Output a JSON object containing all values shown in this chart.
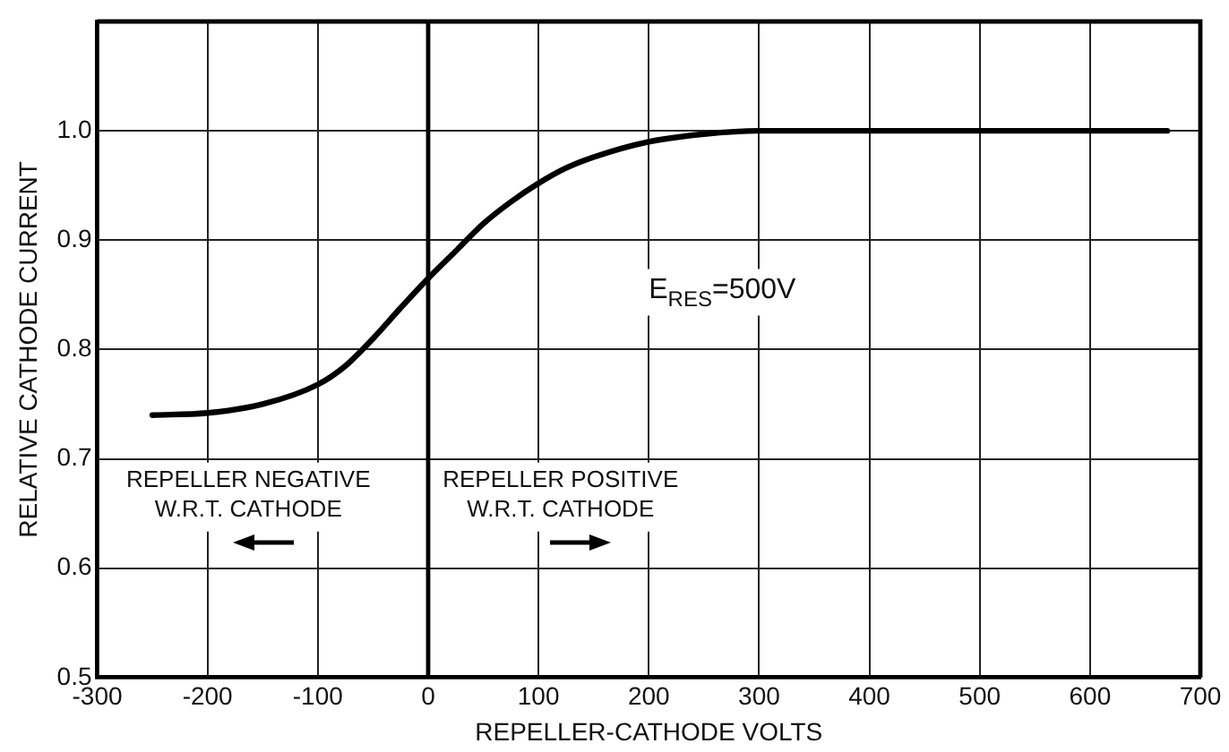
{
  "chart_data": {
    "type": "line",
    "xlabel": "REPELLER-CATHODE VOLTS",
    "ylabel": "RELATIVE CATHODE CURRENT",
    "x": [
      -250,
      -200,
      -150,
      -100,
      -75,
      -50,
      -25,
      0,
      25,
      50,
      75,
      100,
      125,
      150,
      200,
      250,
      300,
      350,
      400,
      500,
      600,
      670
    ],
    "series": [
      {
        "color": "#000000",
        "values": [
          0.74,
          0.742,
          0.75,
          0.768,
          0.785,
          0.81,
          0.838,
          0.865,
          0.89,
          0.915,
          0.935,
          0.952,
          0.966,
          0.976,
          0.99,
          0.997,
          1.0,
          1.0,
          1.0,
          1.0,
          1.0,
          1.0
        ]
      }
    ],
    "xlim": [
      -300,
      700
    ],
    "xticks": [
      -300,
      -200,
      -100,
      0,
      100,
      200,
      300,
      400,
      500,
      600,
      700
    ],
    "ylim": [
      0.5,
      1.1
    ],
    "yticks": [
      0.5,
      0.6,
      0.7,
      0.8,
      0.9,
      "1.0",
      {
        "value": 1.1,
        "label": null
      }
    ],
    "ref_lines": [
      {
        "axis": "x",
        "value": 0,
        "color": "#000000"
      }
    ],
    "annotations": [
      "E$_{RES}$=500V",
      "REPELLER NEGATIVE\nW.R.T. CATHODE",
      "REPELLER POSITIVE\nW.R.T. CATHODE"
    ],
    "grid": true,
    "legend": false,
    "marker": "none",
    "line_style": "solid"
  }
}
